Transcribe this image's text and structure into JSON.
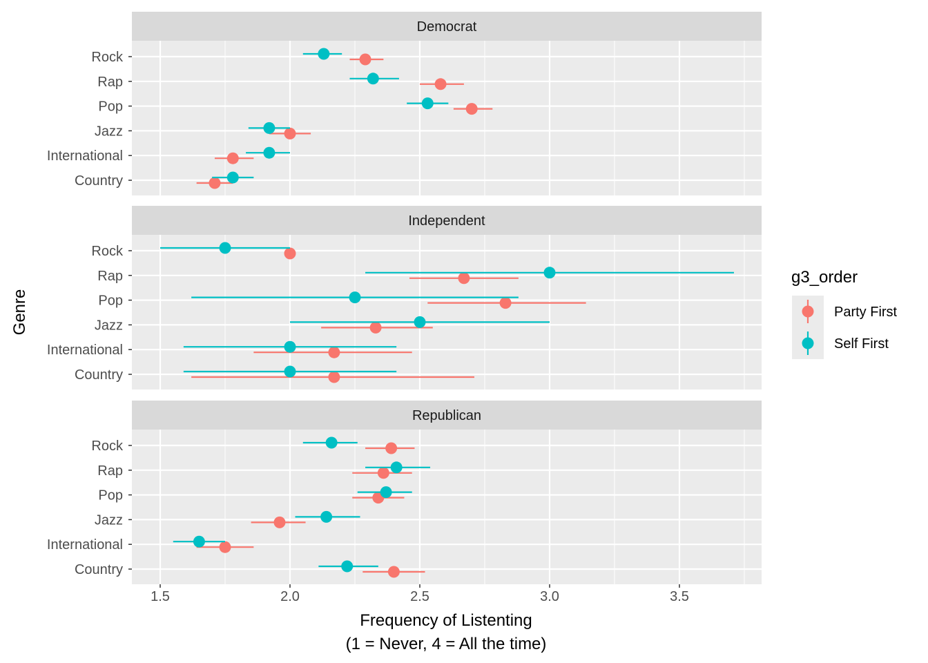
{
  "chart_data": {
    "type": "scatter",
    "subtype": "pointrange-faceted",
    "xlabel": "Frequency of Listenting\n(1 = Never, 4 = All the time)",
    "xlabel_lines": [
      "Frequency of Listenting",
      "(1 = Never, 4 = All the time)"
    ],
    "ylabel": "Genre",
    "xlim": [
      1.39,
      3.82
    ],
    "x_ticks": [
      1.5,
      2.0,
      2.5,
      3.0,
      3.5
    ],
    "x_tick_labels": [
      "1.5",
      "2.0",
      "2.5",
      "3.0",
      "3.5"
    ],
    "categories": [
      "Rock",
      "Rap",
      "Pop",
      "Jazz",
      "International",
      "Country"
    ],
    "grid": true,
    "legend": {
      "title": "g3_order",
      "position": "right",
      "entries": [
        {
          "name": "Party First",
          "color": "#F8766D"
        },
        {
          "name": "Self First",
          "color": "#00BFC4"
        }
      ]
    },
    "facets": [
      {
        "name": "Democrat",
        "series": [
          {
            "name": "Party First",
            "color": "#F8766D",
            "values": [
              {
                "genre": "Rock",
                "mean": 2.29,
                "lo": 2.23,
                "hi": 2.36
              },
              {
                "genre": "Rap",
                "mean": 2.58,
                "lo": 2.5,
                "hi": 2.67
              },
              {
                "genre": "Pop",
                "mean": 2.7,
                "lo": 2.63,
                "hi": 2.78
              },
              {
                "genre": "Jazz",
                "mean": 2.0,
                "lo": 1.92,
                "hi": 2.08
              },
              {
                "genre": "International",
                "mean": 1.78,
                "lo": 1.71,
                "hi": 1.86
              },
              {
                "genre": "Country",
                "mean": 1.71,
                "lo": 1.64,
                "hi": 1.78
              }
            ]
          },
          {
            "name": "Self First",
            "color": "#00BFC4",
            "values": [
              {
                "genre": "Rock",
                "mean": 2.13,
                "lo": 2.05,
                "hi": 2.2
              },
              {
                "genre": "Rap",
                "mean": 2.32,
                "lo": 2.23,
                "hi": 2.42
              },
              {
                "genre": "Pop",
                "mean": 2.53,
                "lo": 2.45,
                "hi": 2.61
              },
              {
                "genre": "Jazz",
                "mean": 1.92,
                "lo": 1.84,
                "hi": 2.0
              },
              {
                "genre": "International",
                "mean": 1.92,
                "lo": 1.83,
                "hi": 2.0
              },
              {
                "genre": "Country",
                "mean": 1.78,
                "lo": 1.7,
                "hi": 1.86
              }
            ]
          }
        ]
      },
      {
        "name": "Independent",
        "series": [
          {
            "name": "Party First",
            "color": "#F8766D",
            "values": [
              {
                "genre": "Rock",
                "mean": 2.0,
                "lo": null,
                "hi": null
              },
              {
                "genre": "Rap",
                "mean": 2.67,
                "lo": 2.46,
                "hi": 2.88
              },
              {
                "genre": "Pop",
                "mean": 2.83,
                "lo": 2.53,
                "hi": 3.14
              },
              {
                "genre": "Jazz",
                "mean": 2.33,
                "lo": 2.12,
                "hi": 2.55
              },
              {
                "genre": "International",
                "mean": 2.17,
                "lo": 1.86,
                "hi": 2.47
              },
              {
                "genre": "Country",
                "mean": 2.17,
                "lo": 1.62,
                "hi": 2.71
              }
            ]
          },
          {
            "name": "Self First",
            "color": "#00BFC4",
            "values": [
              {
                "genre": "Rock",
                "mean": 1.75,
                "lo": 1.5,
                "hi": 2.0
              },
              {
                "genre": "Rap",
                "mean": 3.0,
                "lo": 2.29,
                "hi": 3.71
              },
              {
                "genre": "Pop",
                "mean": 2.25,
                "lo": 1.62,
                "hi": 2.88
              },
              {
                "genre": "Jazz",
                "mean": 2.5,
                "lo": 2.0,
                "hi": 3.0
              },
              {
                "genre": "International",
                "mean": 2.0,
                "lo": 1.59,
                "hi": 2.41
              },
              {
                "genre": "Country",
                "mean": 2.0,
                "lo": 1.59,
                "hi": 2.41
              }
            ]
          }
        ]
      },
      {
        "name": "Republican",
        "series": [
          {
            "name": "Party First",
            "color": "#F8766D",
            "values": [
              {
                "genre": "Rock",
                "mean": 2.39,
                "lo": 2.29,
                "hi": 2.48
              },
              {
                "genre": "Rap",
                "mean": 2.36,
                "lo": 2.24,
                "hi": 2.47
              },
              {
                "genre": "Pop",
                "mean": 2.34,
                "lo": 2.24,
                "hi": 2.44
              },
              {
                "genre": "Jazz",
                "mean": 1.96,
                "lo": 1.85,
                "hi": 2.06
              },
              {
                "genre": "International",
                "mean": 1.75,
                "lo": 1.64,
                "hi": 1.86
              },
              {
                "genre": "Country",
                "mean": 2.4,
                "lo": 2.28,
                "hi": 2.52
              }
            ]
          },
          {
            "name": "Self First",
            "color": "#00BFC4",
            "values": [
              {
                "genre": "Rock",
                "mean": 2.16,
                "lo": 2.05,
                "hi": 2.26
              },
              {
                "genre": "Rap",
                "mean": 2.41,
                "lo": 2.29,
                "hi": 2.54
              },
              {
                "genre": "Pop",
                "mean": 2.37,
                "lo": 2.26,
                "hi": 2.47
              },
              {
                "genre": "Jazz",
                "mean": 2.14,
                "lo": 2.02,
                "hi": 2.27
              },
              {
                "genre": "International",
                "mean": 1.65,
                "lo": 1.55,
                "hi": 1.75
              },
              {
                "genre": "Country",
                "mean": 2.22,
                "lo": 2.11,
                "hi": 2.34
              }
            ]
          }
        ]
      }
    ]
  }
}
